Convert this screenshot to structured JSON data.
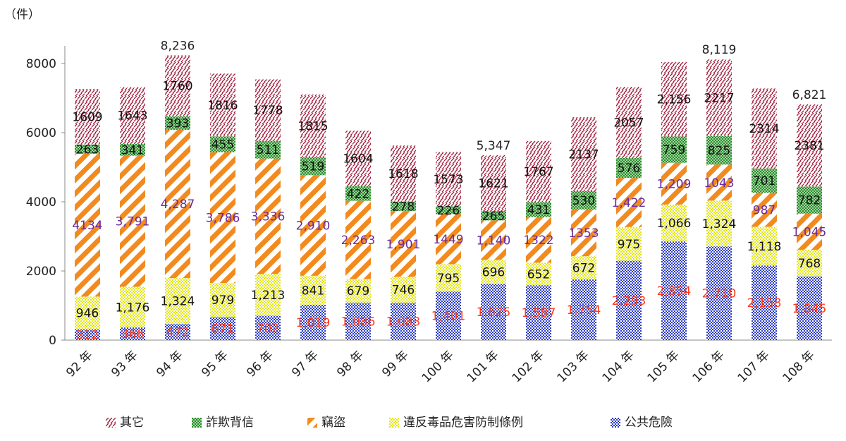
{
  "chart_data": {
    "type": "bar",
    "stacked": true,
    "unit_label": "（件）",
    "categories": [
      "92 年",
      "93 年",
      "94 年",
      "95 年",
      "96 年",
      "97 年",
      "98 年",
      "99 年",
      "100 年",
      "101 年",
      "102 年",
      "103 年",
      "104 年",
      "105 年",
      "106 年",
      "107 年",
      "108 年"
    ],
    "ylim": [
      0,
      8000
    ],
    "yticks": [
      0,
      2000,
      4000,
      6000,
      8000
    ],
    "series": [
      {
        "key": "public",
        "name": "公共危險",
        "color": "#2f3fc4",
        "values": [
          312,
          366,
          472,
          671,
          702,
          1019,
          1086,
          1083,
          1401,
          1625,
          1587,
          1754,
          2293,
          2854,
          2710,
          2158,
          1845
        ],
        "labels": [
          "312",
          "366",
          "472",
          "671",
          "702",
          "1,019",
          "1,086",
          "1,083",
          "1,401",
          "1,625",
          "1,587",
          "1,754",
          "2,293",
          "2,854",
          "2,710",
          "2,158",
          "1,845"
        ]
      },
      {
        "key": "drug",
        "name": "違反毒品危害防制條例",
        "color": "#e3e61c",
        "values": [
          946,
          1176,
          1324,
          979,
          1213,
          841,
          679,
          746,
          795,
          696,
          652,
          672,
          975,
          1066,
          1324,
          1118,
          768
        ],
        "labels": [
          "946",
          "1,176",
          "1,324",
          "979",
          "1,213",
          "841",
          "679",
          "746",
          "795",
          "696",
          "652",
          "672",
          "975",
          "1,066",
          "1,324",
          "1,118",
          "768"
        ]
      },
      {
        "key": "theft",
        "name": "竊盜",
        "color": "#f28a1e",
        "values": [
          4134,
          3791,
          4287,
          3786,
          3336,
          2910,
          2263,
          1901,
          1449,
          1140,
          1322,
          1353,
          1422,
          1209,
          1043,
          987,
          1045
        ],
        "labels": [
          "4134",
          "3,791",
          "4,287",
          "3,786",
          "3,336",
          "2,910",
          "2,263",
          "1,901",
          "1449",
          "1,140",
          "1322",
          "1353",
          "1,422",
          "1,209",
          "1043",
          "987",
          "1,045"
        ]
      },
      {
        "key": "fraud",
        "name": "詐欺背信",
        "color": "#3c9a3c",
        "values": [
          263,
          341,
          393,
          455,
          511,
          519,
          422,
          278,
          226,
          265,
          431,
          530,
          576,
          759,
          825,
          701,
          782
        ],
        "labels": [
          "263",
          "341",
          "393",
          "455",
          "511",
          "519",
          "422",
          "278",
          "226",
          "265",
          "431",
          "530",
          "576",
          "759",
          "825",
          "701",
          "782"
        ]
      },
      {
        "key": "other",
        "name": "其它",
        "color": "#9e1b3a",
        "values": [
          1609,
          1643,
          1760,
          1816,
          1778,
          1815,
          1604,
          1618,
          1573,
          1621,
          1767,
          2137,
          2057,
          2156,
          2217,
          2314,
          2381
        ],
        "labels": [
          "1609",
          "1643",
          "1760",
          "1816",
          "1778",
          "1815",
          "1604",
          "1618",
          "1573",
          "1621",
          "1767",
          "2137",
          "2057",
          "2,156",
          "2217",
          "2314",
          "2381"
        ]
      }
    ],
    "total_labels": [
      {
        "index": 2,
        "text": "8,236"
      },
      {
        "index": 9,
        "text": "5,347"
      },
      {
        "index": 14,
        "text": "8,119"
      },
      {
        "index": 16,
        "text": "6,821"
      }
    ],
    "legend_position": "bottom",
    "legend_order": [
      "other",
      "fraud",
      "theft",
      "drug",
      "public"
    ]
  }
}
